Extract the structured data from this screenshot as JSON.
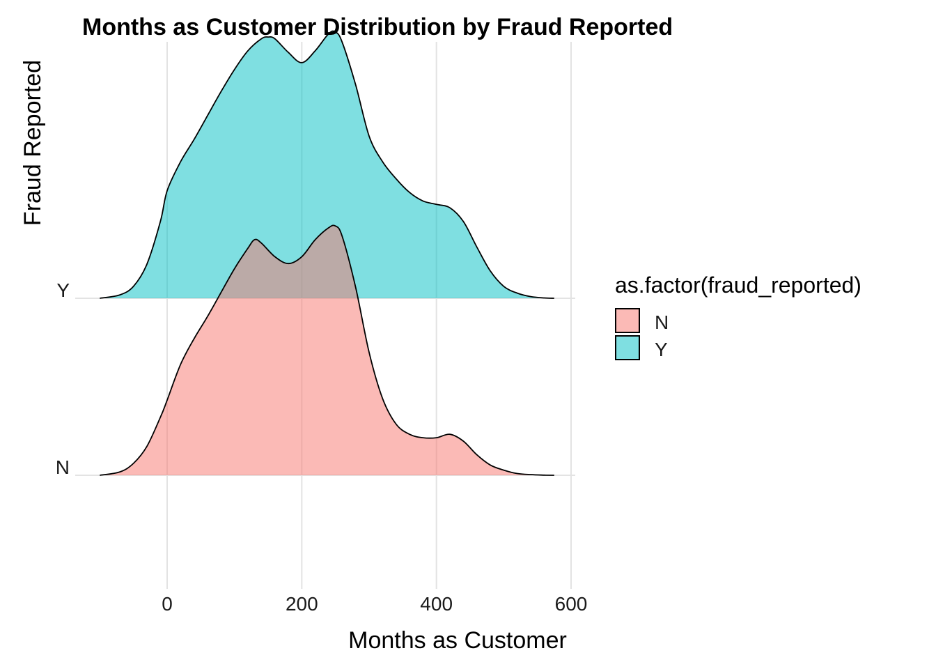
{
  "chart_data": {
    "type": "ridgeline",
    "title": "Months as Customer Distribution by Fraud Reported",
    "xlabel": "Months as Customer",
    "ylabel": "Fraud Reported",
    "xlim": [
      -100,
      575
    ],
    "x_ticks": [
      0,
      200,
      400,
      600
    ],
    "categories": [
      "N",
      "Y"
    ],
    "grid": true,
    "legend": {
      "title": "as.factor(fraud_reported)",
      "placement": "right",
      "entries": [
        {
          "label": "N",
          "color": "#F8766D"
        },
        {
          "label": "Y",
          "color": "#00BFC4"
        }
      ]
    },
    "series": [
      {
        "name": "N",
        "color": "#F8766D",
        "x": [
          -100,
          -70,
          -50,
          -30,
          -10,
          0,
          20,
          40,
          60,
          80,
          100,
          120,
          130,
          140,
          160,
          180,
          200,
          220,
          240,
          250,
          260,
          280,
          300,
          320,
          340,
          360,
          380,
          400,
          420,
          440,
          460,
          480,
          500,
          520,
          540,
          560,
          575
        ],
        "y": [
          0.0,
          0.02,
          0.07,
          0.17,
          0.34,
          0.44,
          0.65,
          0.8,
          0.93,
          1.07,
          1.21,
          1.33,
          1.38,
          1.36,
          1.28,
          1.24,
          1.28,
          1.38,
          1.45,
          1.46,
          1.4,
          1.1,
          0.72,
          0.45,
          0.3,
          0.24,
          0.22,
          0.22,
          0.24,
          0.2,
          0.12,
          0.06,
          0.03,
          0.01,
          0.004,
          0.001,
          0.0
        ]
      },
      {
        "name": "Y",
        "color": "#00BFC4",
        "x": [
          -100,
          -70,
          -50,
          -30,
          -10,
          0,
          20,
          40,
          60,
          80,
          100,
          120,
          140,
          150,
          160,
          180,
          200,
          220,
          240,
          250,
          260,
          280,
          300,
          320,
          340,
          360,
          380,
          400,
          420,
          440,
          460,
          480,
          500,
          520,
          540,
          560,
          575
        ],
        "y": [
          0.0,
          0.02,
          0.07,
          0.2,
          0.45,
          0.63,
          0.8,
          0.93,
          1.07,
          1.21,
          1.34,
          1.45,
          1.52,
          1.53,
          1.52,
          1.44,
          1.38,
          1.45,
          1.55,
          1.56,
          1.5,
          1.25,
          0.95,
          0.8,
          0.7,
          0.62,
          0.57,
          0.55,
          0.53,
          0.45,
          0.3,
          0.16,
          0.07,
          0.03,
          0.01,
          0.002,
          0.0
        ]
      }
    ]
  }
}
